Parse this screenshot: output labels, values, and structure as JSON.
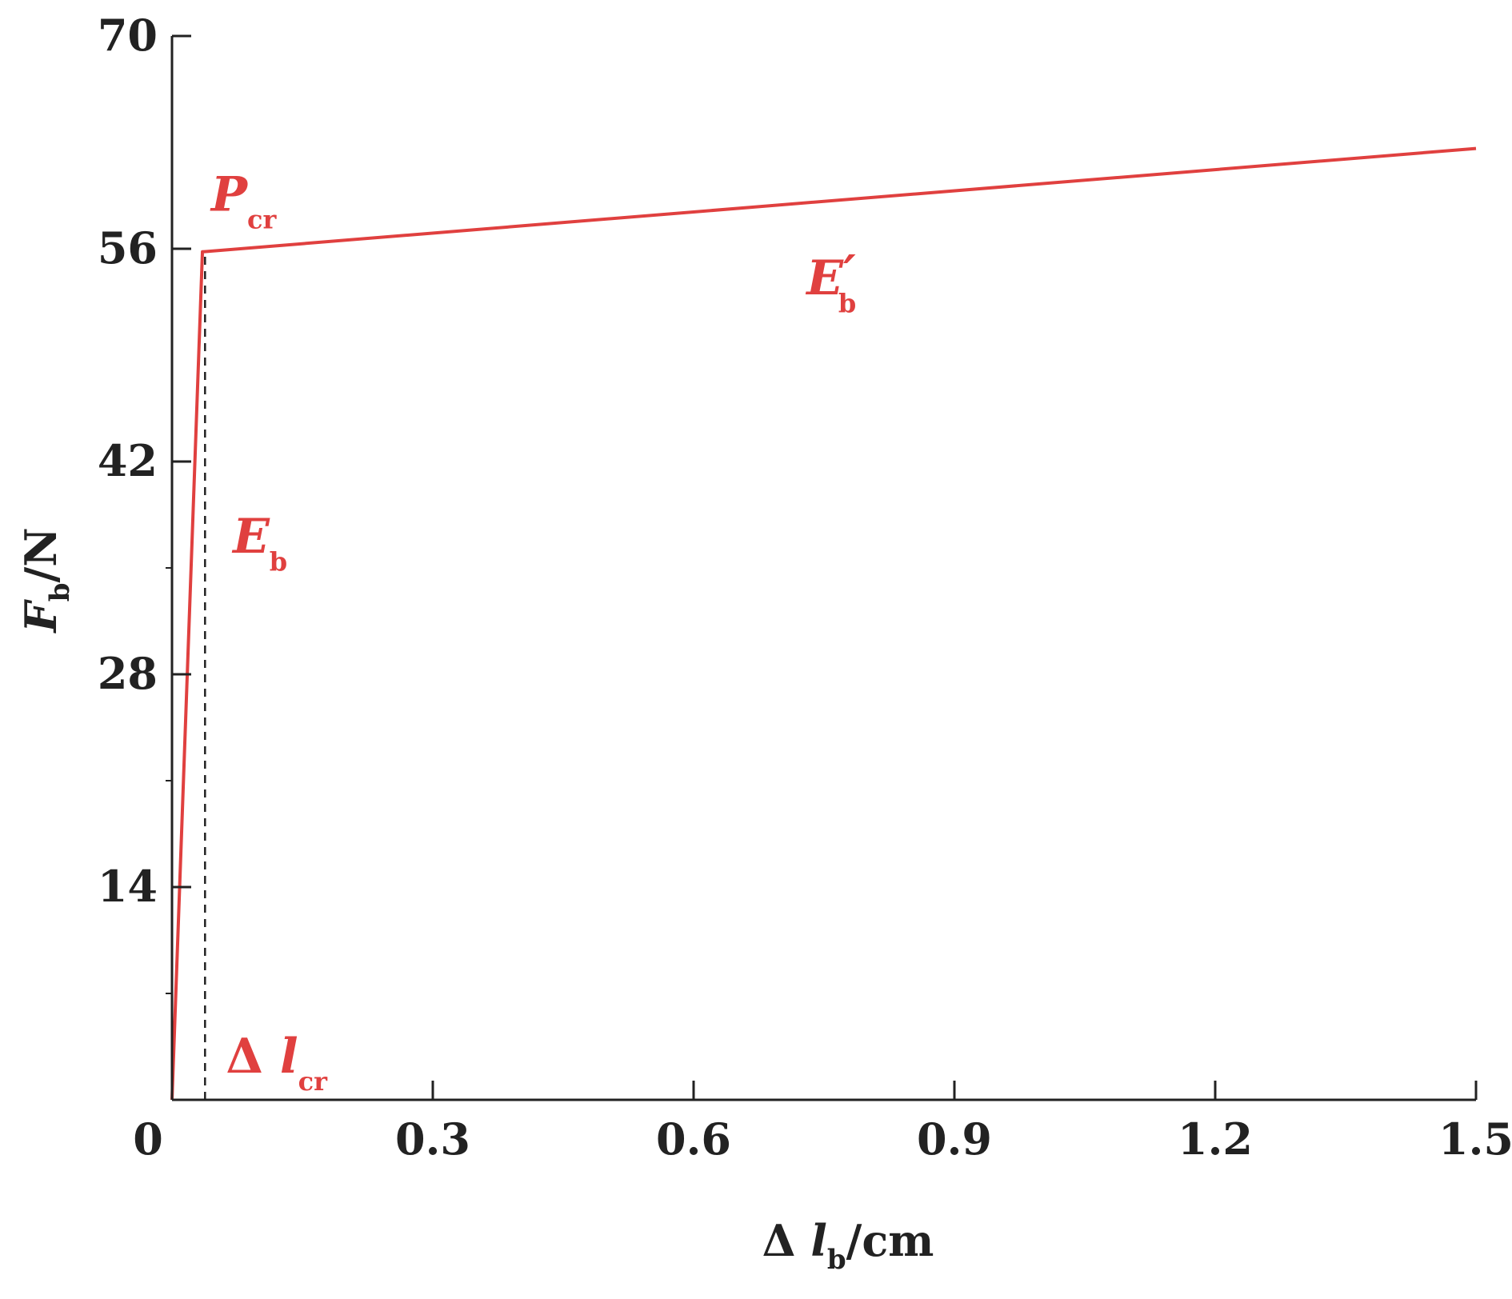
{
  "chart_data": {
    "type": "line",
    "xlabel": {
      "symbol": "Δ l",
      "subscript": "b",
      "unit": "/cm"
    },
    "ylabel": {
      "symbol": "F",
      "subscript": "b",
      "unit": "/N"
    },
    "xlim": [
      0,
      1.5
    ],
    "ylim": [
      0,
      70
    ],
    "x_ticks": [
      {
        "value": 0,
        "label": "0"
      },
      {
        "value": 0.3,
        "label": "0.3"
      },
      {
        "value": 0.6,
        "label": "0.6"
      },
      {
        "value": 0.9,
        "label": "0.9"
      },
      {
        "value": 1.2,
        "label": "1.2"
      },
      {
        "value": 1.5,
        "label": "1.5"
      }
    ],
    "y_ticks": [
      {
        "value": 14,
        "label": "14"
      },
      {
        "value": 28,
        "label": "28"
      },
      {
        "value": 42,
        "label": "42"
      },
      {
        "value": 56,
        "label": "56"
      },
      {
        "value": 70,
        "label": "70"
      }
    ],
    "y_minor_ticks": [
      7,
      21,
      35
    ],
    "grid": false,
    "series": [
      {
        "color": "#e0403f",
        "points": [
          {
            "x": 0,
            "y": 0
          },
          {
            "x": 0.035,
            "y": 55.8
          },
          {
            "x": 1.5,
            "y": 62.6
          }
        ]
      }
    ],
    "reference_lines": [
      {
        "type": "vertical",
        "x": 0.038,
        "y_from": 0,
        "y_to": 55.8,
        "style": "dashed",
        "color": "#222222"
      }
    ],
    "annotations": [
      {
        "id": "pcr",
        "symbol": "P",
        "subscript": "cr",
        "prime": "",
        "x": 0.045,
        "y": 58.5,
        "color": "#e0403f"
      },
      {
        "id": "eb-prime",
        "symbol": "E",
        "subscript": "b",
        "prime": "′",
        "x": 0.73,
        "y": 53.0,
        "color": "#e0403f"
      },
      {
        "id": "eb",
        "symbol": "E",
        "subscript": "b",
        "prime": "",
        "x": 0.07,
        "y": 36.0,
        "color": "#e0403f"
      },
      {
        "id": "dlcr",
        "symbol": "Δ l",
        "subscript": "cr",
        "prime": "",
        "x": 0.062,
        "y": 1.8,
        "color": "#e0403f"
      }
    ]
  }
}
